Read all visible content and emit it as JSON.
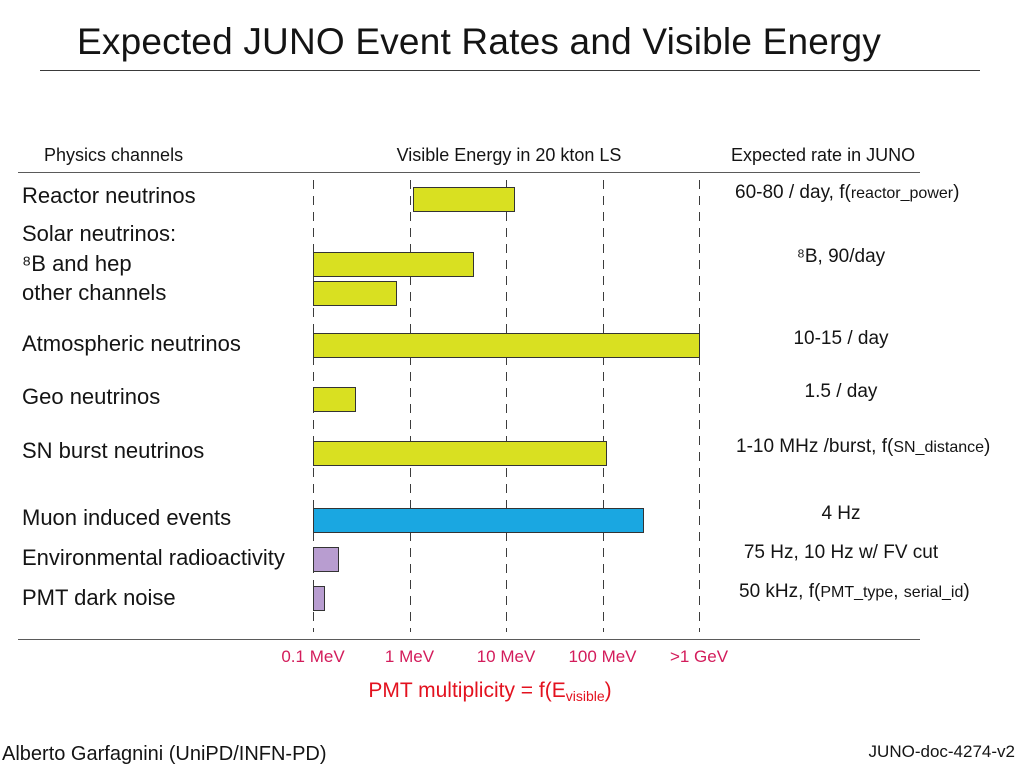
{
  "slide": {
    "title": "Expected JUNO Event Rates and Visible Energy",
    "author": "Alberto Garfagnini (UniPD/INFN-PD)",
    "doc_id": "JUNO-doc-4274-v2"
  },
  "headers": {
    "channels": "Physics channels",
    "rate": "Expected rate in JUNO"
  },
  "groups": {
    "solar": "Solar neutrinos:"
  },
  "rates": [
    [
      "60-80 / day, f(",
      "reactor_power",
      ")"
    ],
    [
      "⁸B, 90/day"
    ],
    [
      "10-15 / day"
    ],
    [
      "1.5 / day"
    ],
    [
      "1-10 MHz /burst, f(",
      "SN_distance",
      ")"
    ],
    [
      "4 Hz"
    ],
    [
      "75 Hz, 10 Hz w/ FV cut"
    ],
    [
      "50 kHz, f(",
      "PMT_type",
      ", ",
      "serial_id",
      ")"
    ]
  ],
  "chart_data": {
    "type": "bar",
    "horizontal": true,
    "log_x": true,
    "grid_x": true,
    "title": "Visible Energy in 20 kton LS",
    "xlabel": [
      "PMT multiplicity = f(E",
      "visible",
      ")"
    ],
    "xlim": [
      0.1,
      1000
    ],
    "xticks": [
      0.1,
      1,
      10,
      100,
      1000
    ],
    "xtick_labels": [
      "0.1 MeV",
      "1 MeV",
      "10 MeV",
      "100 MeV",
      ">1 GeV"
    ],
    "categories": [
      "Reactor neutrinos",
      "⁸B and hep",
      "other channels",
      "Atmospheric neutrinos",
      "Geo neutrinos",
      "SN burst neutrinos",
      "Muon induced events",
      "Environmental radioactivity",
      "PMT dark noise"
    ],
    "ranges": [
      [
        1.1,
        12
      ],
      [
        0.1,
        4.6
      ],
      [
        0.1,
        0.73
      ],
      [
        0.1,
        1000
      ],
      [
        0.1,
        0.27
      ],
      [
        0.1,
        110
      ],
      [
        0.1,
        260
      ],
      [
        0.1,
        0.18
      ],
      [
        0.1,
        0.13
      ]
    ],
    "colors": [
      "#d9e021",
      "#d9e021",
      "#d9e021",
      "#d9e021",
      "#d9e021",
      "#d9e021",
      "#1aa7e1",
      "#b89dd0",
      "#b89dd0"
    ]
  },
  "colors": {
    "tick_label": "#d31c5b",
    "xlabel": "#e3121f",
    "bar_border": "#333333"
  }
}
